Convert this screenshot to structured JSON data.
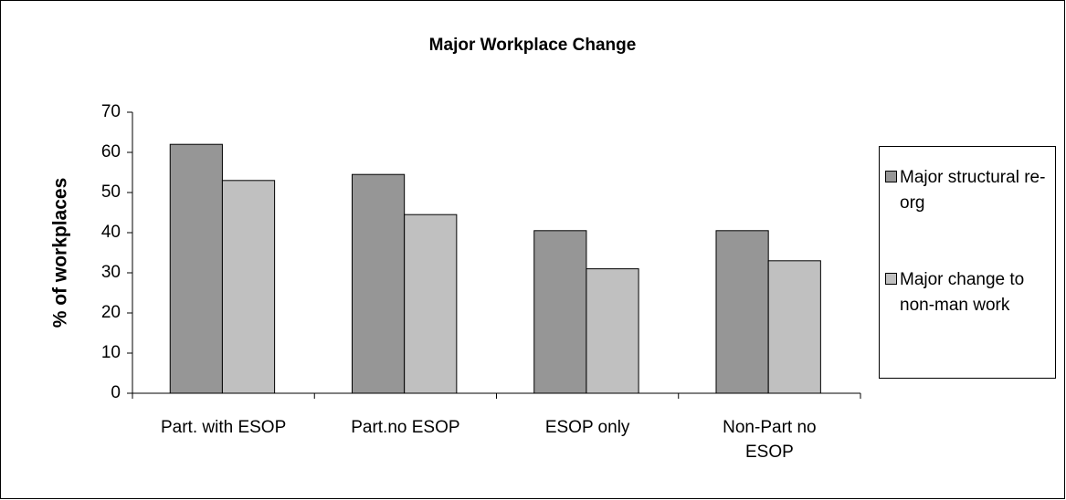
{
  "chart_data": {
    "type": "bar",
    "title": "Major Workplace Change",
    "y_label": "% of workplaces",
    "categories": [
      "Part. with ESOP",
      "Part.no ESOP",
      "ESOP only",
      "Non-Part no ESOP"
    ],
    "series": [
      {
        "name": "Major structural re-org",
        "color": "#969696",
        "values": [
          62,
          54.5,
          40.5,
          40.5
        ]
      },
      {
        "name": "Major change to non-man work",
        "color": "#c0c0c0",
        "values": [
          53,
          44.5,
          31,
          33
        ]
      }
    ],
    "ylim": [
      0,
      70
    ],
    "yticks": [
      0,
      10,
      20,
      30,
      40,
      50,
      60,
      70
    ],
    "grid": false,
    "legend": "right"
  }
}
